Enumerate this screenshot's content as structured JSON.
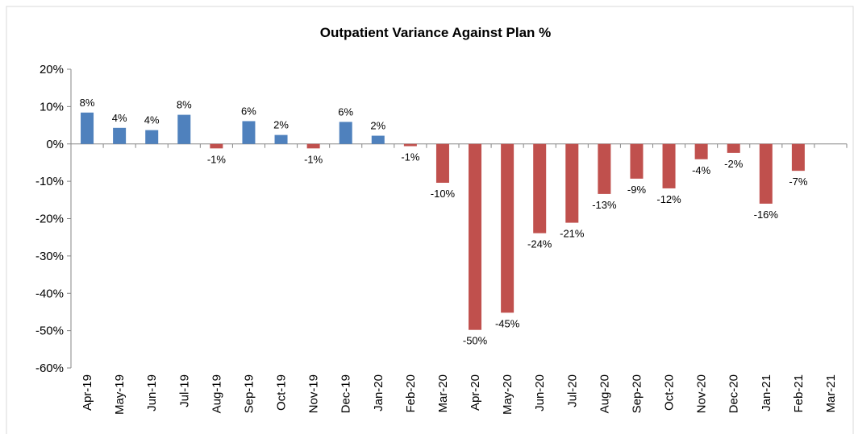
{
  "chart_data": {
    "type": "bar",
    "title": "Outpatient Variance Against Plan %",
    "categories": [
      "Apr-19",
      "May-19",
      "Jun-19",
      "Jul-19",
      "Aug-19",
      "Sep-19",
      "Oct-19",
      "Nov-19",
      "Dec-19",
      "Jan-20",
      "Feb-20",
      "Mar-20",
      "Apr-20",
      "May-20",
      "Jun-20",
      "Jul-20",
      "Aug-20",
      "Sep-20",
      "Oct-20",
      "Nov-20",
      "Dec-20",
      "Jan-21",
      "Feb-21",
      "Mar-21"
    ],
    "values": [
      8.4,
      4.3,
      3.7,
      7.8,
      -1.2,
      6.1,
      2.4,
      -1.2,
      5.9,
      2.2,
      -0.6,
      -10.4,
      -49.8,
      -45.2,
      -23.9,
      -21.1,
      -13.4,
      -9.3,
      -11.9,
      -4.1,
      -2.4,
      -16.0,
      -7.2,
      null
    ],
    "value_labels": [
      "8%",
      "4%",
      "4%",
      "8%",
      "-1%",
      "6%",
      "2%",
      "-1%",
      "6%",
      "2%",
      "-1%",
      "-10%",
      "-50%",
      "-45%",
      "-24%",
      "-21%",
      "-13%",
      "-9%",
      "-12%",
      "-4%",
      "-2%",
      "-16%",
      "-7%",
      null
    ],
    "positive_color": "#4f81bd",
    "negative_color": "#c0504d",
    "ylim": [
      -60,
      20
    ],
    "yticks": [
      {
        "value": -60,
        "label": "-60%"
      },
      {
        "value": -50,
        "label": "-50%"
      },
      {
        "value": -40,
        "label": "-40%"
      },
      {
        "value": -30,
        "label": "-30%"
      },
      {
        "value": -20,
        "label": "-20%"
      },
      {
        "value": -10,
        "label": "-10%"
      },
      {
        "value": 0,
        "label": "0%"
      },
      {
        "value": 10,
        "label": "10%"
      },
      {
        "value": 20,
        "label": "20%"
      }
    ],
    "grid": false
  }
}
